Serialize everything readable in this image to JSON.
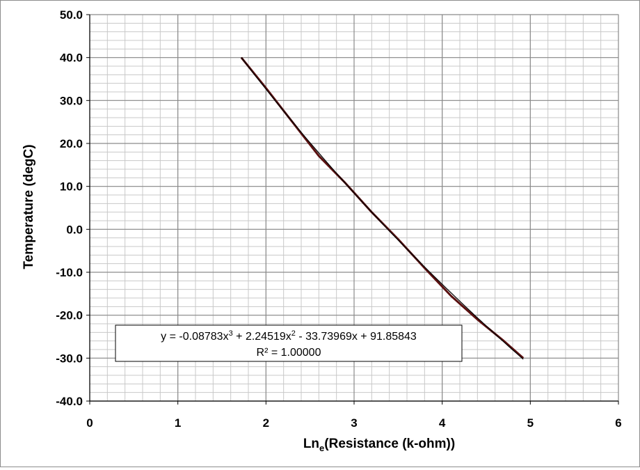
{
  "chart_data": {
    "type": "scatter",
    "title": "",
    "xlabel": "Ln",
    "xlabel_sub": "e",
    "xlabel_rest": "(Resistance (k-ohm))",
    "ylabel": "Temperature (degC)",
    "xlim": [
      0,
      6
    ],
    "ylim": [
      -40,
      50
    ],
    "x_ticks": [
      "0",
      "1",
      "2",
      "3",
      "4",
      "5",
      "6"
    ],
    "y_ticks": [
      "50.0",
      "40.0",
      "30.0",
      "20.0",
      "10.0",
      "0.0",
      "-10.0",
      "-20.0",
      "-30.0",
      "-40.0"
    ],
    "grid": true,
    "legend": "none",
    "series": [
      {
        "color": "#5a1010",
        "x": [
          1.72,
          2.0,
          2.3,
          2.6,
          2.9,
          3.2,
          3.5,
          3.8,
          4.1,
          4.4,
          4.7,
          4.92
        ],
        "y": [
          40.0,
          32.9,
          25.0,
          17.1,
          10.8,
          4.0,
          -2.3,
          -9.0,
          -15.5,
          -21.0,
          -26.0,
          -30.0
        ]
      }
    ],
    "trendline": {
      "color": "#000000",
      "coefficients": [
        -0.08783,
        2.24519,
        -33.73969,
        91.85843
      ],
      "equation_line1_parts": [
        "y = -0.08783x",
        "3",
        " + 2.24519x",
        "2",
        " - 33.73969x + 91.85843"
      ],
      "equation_line2": "R² = 1.00000"
    }
  }
}
